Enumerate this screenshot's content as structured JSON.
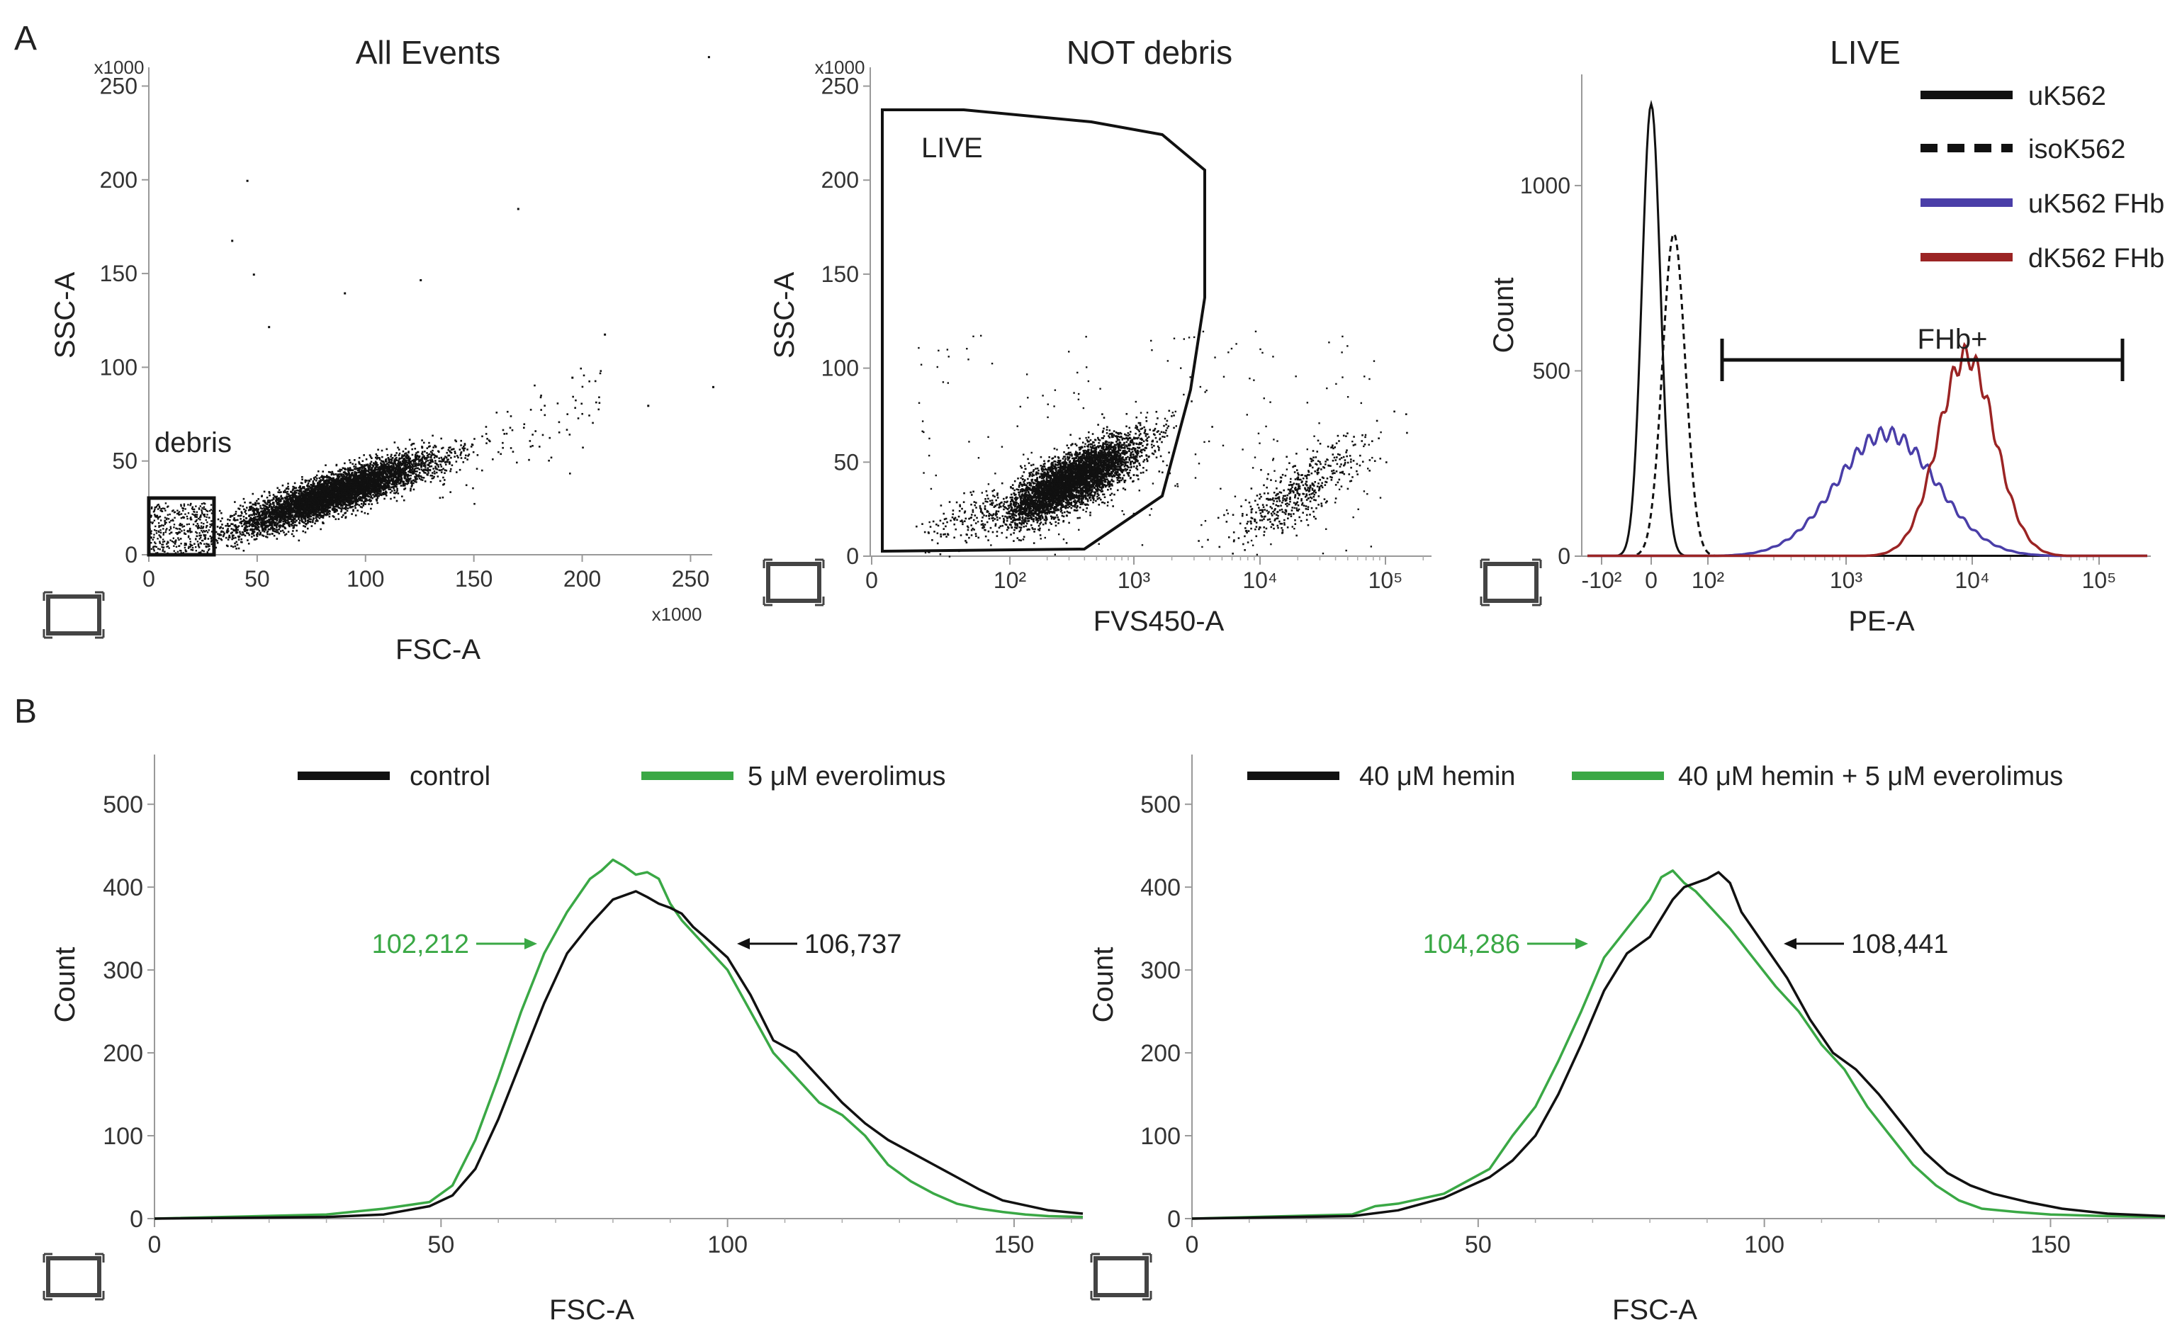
{
  "panel_labels": [
    "A",
    "B"
  ],
  "expand_icon": "expand-frame-icon",
  "colors": {
    "axis": "#999999",
    "black": "#111111",
    "green": "#3aa845",
    "blue": "#4a3ea8",
    "darkred": "#9b2424"
  },
  "chart_data": [
    {
      "id": "all-events",
      "type": "scatter",
      "title": "All Events",
      "xlabel": "FSC-A",
      "ylabel": "SSC-A",
      "x_multiplier": "x1000",
      "y_multiplier": "x1000",
      "xlim": [
        0,
        260
      ],
      "ylim": [
        0,
        260
      ],
      "xticks": [
        0,
        50,
        100,
        150,
        200,
        250
      ],
      "yticks": [
        0,
        50,
        100,
        150,
        200,
        250
      ],
      "gates": [
        {
          "name": "debris",
          "x": [
            0,
            30
          ],
          "y": [
            0,
            30
          ]
        }
      ],
      "population": {
        "x_center": 85,
        "y_center": 33,
        "approx_events": 6000
      },
      "outliers": [
        [
          45,
          200
        ],
        [
          38,
          168
        ],
        [
          48,
          150
        ],
        [
          55,
          122
        ],
        [
          170,
          185
        ],
        [
          125,
          147
        ],
        [
          90,
          140
        ],
        [
          230,
          80
        ],
        [
          260,
          90
        ],
        [
          258,
          266
        ],
        [
          210,
          118
        ],
        [
          195,
          95
        ]
      ]
    },
    {
      "id": "not-debris",
      "type": "scatter",
      "title": "NOT debris",
      "xlabel": "FVS450-A",
      "ylabel": "SSC-A",
      "y_multiplier": "x1000",
      "x_scale": "biexponential",
      "ylim": [
        0,
        260
      ],
      "xticks": [
        "0",
        "10²",
        "10³",
        "10⁴",
        "10⁵"
      ],
      "yticks": [
        0,
        50,
        100,
        150,
        200,
        250
      ],
      "gates": [
        {
          "name": "LIVE"
        }
      ],
      "population": {
        "x_center": 300,
        "y_center": 40,
        "approx_events": 5000
      },
      "secondary_population": {
        "x_center": 20000,
        "y_center": 35,
        "approx_events": 500
      }
    },
    {
      "id": "live-histogram",
      "type": "line",
      "title": "LIVE",
      "xlabel": "PE-A",
      "ylabel": "Count",
      "x_scale": "biexponential",
      "ylim": [
        0,
        1300
      ],
      "xticks": [
        "-10²",
        "0",
        "10²",
        "10³",
        "10⁴",
        "10⁵"
      ],
      "yticks": [
        0,
        500,
        1000
      ],
      "gate": {
        "name": "FHb+",
        "x_range": [
          "1.2×10²",
          "1.6×10⁵"
        ]
      },
      "legend_position": "top-right",
      "series": [
        {
          "name": "uK562",
          "style": "solid",
          "color": "#111111",
          "peak_x": "0",
          "peak_count": 1220
        },
        {
          "name": "isoK562",
          "style": "dashed",
          "color": "#111111",
          "peak_x": "30",
          "peak_count": 870
        },
        {
          "name": "uK562 FHb",
          "style": "solid",
          "color": "#4a3ea8",
          "peak_x": "2.2×10³",
          "peak_count": 330
        },
        {
          "name": "dK562 FHb",
          "style": "solid",
          "color": "#9b2424",
          "peak_x": "9×10³",
          "peak_count": 540
        }
      ]
    },
    {
      "id": "fsc-everolimus",
      "type": "line",
      "title": "",
      "xlabel": "FSC-A",
      "ylabel": "Count",
      "xlim": [
        0,
        162
      ],
      "ylim": [
        0,
        560
      ],
      "xticks": [
        0,
        50,
        100,
        150
      ],
      "yticks": [
        0,
        100,
        200,
        300,
        400,
        500
      ],
      "legend_position": "top",
      "series": [
        {
          "name": "control",
          "color": "#111111",
          "label": "106,737",
          "x": [
            0,
            30,
            40,
            48,
            52,
            56,
            60,
            64,
            68,
            72,
            76,
            80,
            84,
            86,
            88,
            90,
            92,
            94,
            96,
            100,
            104,
            108,
            112,
            116,
            120,
            124,
            128,
            132,
            136,
            140,
            144,
            148,
            152,
            156,
            162
          ],
          "y": [
            0,
            2,
            5,
            15,
            28,
            60,
            120,
            190,
            260,
            320,
            355,
            385,
            395,
            388,
            380,
            375,
            368,
            352,
            340,
            315,
            270,
            215,
            200,
            170,
            140,
            115,
            95,
            80,
            65,
            50,
            35,
            22,
            16,
            10,
            6
          ]
        },
        {
          "name": "5 μM everolimus",
          "color": "#3aa845",
          "label": "102,212",
          "x": [
            0,
            30,
            40,
            48,
            52,
            56,
            60,
            64,
            68,
            72,
            76,
            78,
            80,
            82,
            84,
            86,
            88,
            90,
            92,
            96,
            100,
            104,
            108,
            112,
            116,
            120,
            124,
            128,
            132,
            136,
            140,
            144,
            148,
            152,
            156,
            162
          ],
          "y": [
            0,
            5,
            12,
            20,
            40,
            95,
            170,
            250,
            320,
            370,
            410,
            420,
            433,
            425,
            415,
            418,
            410,
            380,
            360,
            330,
            300,
            250,
            200,
            170,
            140,
            125,
            100,
            65,
            45,
            30,
            18,
            12,
            8,
            5,
            3,
            2
          ]
        }
      ]
    },
    {
      "id": "fsc-hemin-everolimus",
      "type": "line",
      "title": "",
      "xlabel": "FSC-A",
      "ylabel": "Count",
      "xlim": [
        0,
        170
      ],
      "ylim": [
        0,
        560
      ],
      "xticks": [
        0,
        50,
        100,
        150
      ],
      "yticks": [
        0,
        100,
        200,
        300,
        400,
        500
      ],
      "legend_position": "top",
      "series": [
        {
          "name": "40 μM hemin",
          "color": "#111111",
          "label": "108,441",
          "x": [
            0,
            28,
            36,
            44,
            52,
            56,
            60,
            64,
            68,
            72,
            76,
            80,
            84,
            86,
            88,
            90,
            92,
            94,
            96,
            98,
            100,
            104,
            108,
            112,
            116,
            120,
            124,
            128,
            132,
            136,
            140,
            146,
            152,
            160,
            170
          ],
          "y": [
            0,
            3,
            10,
            25,
            50,
            70,
            100,
            150,
            210,
            275,
            320,
            340,
            385,
            400,
            405,
            410,
            418,
            405,
            370,
            350,
            330,
            290,
            240,
            200,
            180,
            150,
            115,
            80,
            55,
            40,
            30,
            20,
            12,
            6,
            3
          ]
        },
        {
          "name": "40 μM hemin + 5 μM everolimus",
          "color": "#3aa845",
          "label": "104,286",
          "x": [
            0,
            28,
            32,
            36,
            44,
            52,
            56,
            60,
            64,
            68,
            72,
            76,
            80,
            82,
            84,
            86,
            88,
            90,
            94,
            98,
            102,
            106,
            110,
            114,
            118,
            122,
            126,
            130,
            134,
            138,
            144,
            150,
            160,
            170
          ],
          "y": [
            0,
            5,
            15,
            18,
            30,
            60,
            100,
            135,
            190,
            250,
            315,
            350,
            385,
            412,
            420,
            405,
            395,
            380,
            350,
            315,
            280,
            250,
            210,
            180,
            135,
            100,
            65,
            40,
            22,
            12,
            8,
            5,
            3,
            2
          ]
        }
      ]
    }
  ]
}
